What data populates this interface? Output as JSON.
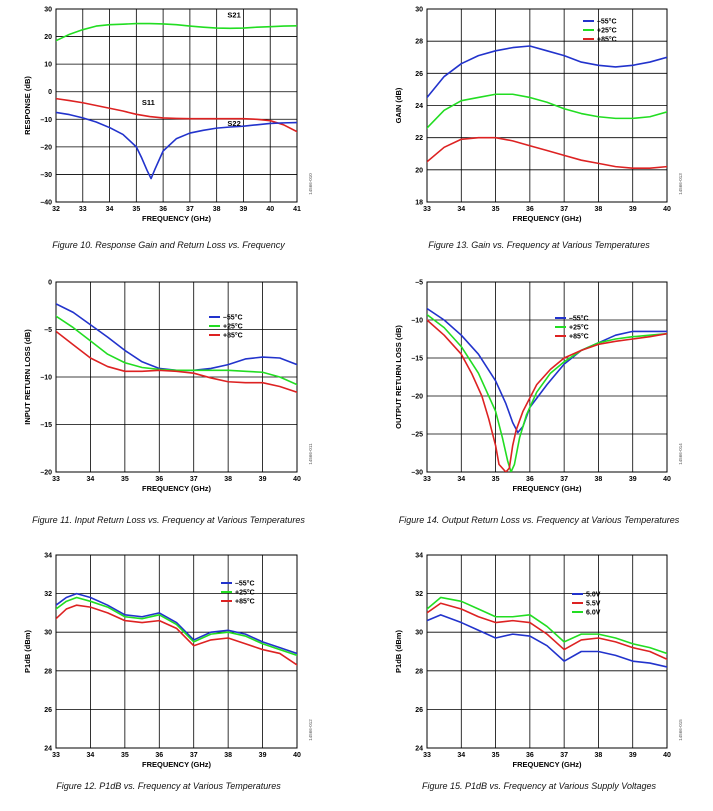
{
  "chart_data": [
    {
      "type": "line",
      "caption": "Figure 10. Response Gain and Return Loss vs. Frequency",
      "xlabel": "FREQUENCY (GHz)",
      "ylabel": "RESPONSE (dB)",
      "xlim": [
        32,
        41
      ],
      "ylim": [
        -40,
        30
      ],
      "xticks": [
        32,
        33,
        34,
        35,
        36,
        37,
        38,
        39,
        40,
        41
      ],
      "yticks": [
        -40,
        -30,
        -20,
        -10,
        0,
        10,
        20,
        30
      ],
      "grid": true,
      "figure_id": "14566-010",
      "annotations": [
        {
          "text": "S21",
          "x": 38.65,
          "y": 27
        },
        {
          "text": "S11",
          "x": 35.45,
          "y": -4.8
        },
        {
          "text": "S22",
          "x": 38.65,
          "y": -12.5
        }
      ],
      "series": [
        {
          "name": "S21",
          "color": "#22dd22",
          "x": [
            32,
            32.5,
            33,
            33.5,
            34,
            34.5,
            35,
            35.5,
            36,
            36.5,
            37,
            37.5,
            38,
            38.5,
            39,
            39.5,
            40,
            40.5,
            41
          ],
          "y": [
            18.5,
            20.8,
            22.5,
            23.8,
            24.3,
            24.5,
            24.7,
            24.7,
            24.6,
            24.3,
            23.8,
            23.4,
            23.1,
            23,
            23.1,
            23.4,
            23.6,
            23.8,
            23.9
          ]
        },
        {
          "name": "S11",
          "color": "#dd2222",
          "x": [
            32,
            32.5,
            33,
            33.5,
            34,
            34.5,
            35,
            35.5,
            36,
            36.5,
            37,
            37.5,
            38,
            38.5,
            39,
            39.5,
            40,
            40.5,
            41
          ],
          "y": [
            -2.5,
            -3.2,
            -4,
            -5,
            -6,
            -7,
            -8.2,
            -9,
            -9.5,
            -9.7,
            -9.8,
            -9.8,
            -9.8,
            -9.8,
            -9.8,
            -10,
            -10.5,
            -12,
            -14.5
          ]
        },
        {
          "name": "S22",
          "color": "#2233cc",
          "x": [
            32,
            32.5,
            33,
            33.5,
            34,
            34.5,
            35,
            35.2,
            35.4,
            35.55,
            35.7,
            36,
            36.5,
            37,
            37.5,
            38,
            38.5,
            39,
            39.5,
            40,
            40.5,
            41
          ],
          "y": [
            -7.5,
            -8.3,
            -9.5,
            -11,
            -13,
            -15.5,
            -20,
            -24,
            -28.5,
            -31.5,
            -28,
            -21.5,
            -17,
            -15,
            -14,
            -13.2,
            -12.8,
            -12.5,
            -12,
            -11.5,
            -11.3,
            -11.2
          ]
        }
      ]
    },
    {
      "type": "line",
      "caption": "Figure 11. Input Return Loss vs. Frequency at Various Temperatures",
      "xlabel": "FREQUENCY (GHz)",
      "ylabel": "INPUT RETURN LOSS (dB)",
      "xlim": [
        33,
        40
      ],
      "ylim": [
        -20,
        0
      ],
      "xticks": [
        33,
        34,
        35,
        36,
        37,
        38,
        39,
        40
      ],
      "yticks": [
        -20,
        -15,
        -10,
        -5,
        0
      ],
      "grid": true,
      "legend": "top-right",
      "figure_id": "14566-011",
      "series": [
        {
          "name": "–55°C",
          "color": "#2233cc",
          "x": [
            33,
            33.5,
            34,
            34.5,
            35,
            35.5,
            36,
            36.5,
            37,
            37.5,
            38,
            38.5,
            39,
            39.5,
            40
          ],
          "y": [
            -2.3,
            -3.2,
            -4.5,
            -5.8,
            -7.2,
            -8.4,
            -9.1,
            -9.3,
            -9.3,
            -9.1,
            -8.7,
            -8.1,
            -7.9,
            -8,
            -8.7
          ]
        },
        {
          "name": "+25°C",
          "color": "#22dd22",
          "x": [
            33,
            33.5,
            34,
            34.5,
            35,
            35.5,
            36,
            36.5,
            37,
            37.5,
            38,
            38.5,
            39,
            39.5,
            40
          ],
          "y": [
            -3.6,
            -4.8,
            -6.2,
            -7.6,
            -8.5,
            -9,
            -9.2,
            -9.3,
            -9.3,
            -9.3,
            -9.3,
            -9.4,
            -9.5,
            -10,
            -10.8
          ]
        },
        {
          "name": "+85°C",
          "color": "#dd2222",
          "x": [
            33,
            33.5,
            34,
            34.5,
            35,
            35.5,
            36,
            36.5,
            37,
            37.5,
            38,
            38.5,
            39,
            39.5,
            40
          ],
          "y": [
            -5.2,
            -6.6,
            -8,
            -8.9,
            -9.4,
            -9.4,
            -9.3,
            -9.4,
            -9.6,
            -10.1,
            -10.5,
            -10.6,
            -10.6,
            -11,
            -11.6
          ]
        }
      ]
    },
    {
      "type": "line",
      "caption": "Figure 12. P1dB vs. Frequency at Various Temperatures",
      "xlabel": "FREQUENCY (GHz)",
      "ylabel": "P1dB (dBm)",
      "xlim": [
        33,
        40
      ],
      "ylim": [
        24,
        34
      ],
      "xticks": [
        33,
        34,
        35,
        36,
        37,
        38,
        39,
        40
      ],
      "yticks": [
        24,
        26,
        28,
        30,
        32,
        34
      ],
      "grid": true,
      "legend": "top-right",
      "figure_id": "14566-012",
      "series": [
        {
          "name": "–55°C",
          "color": "#2233cc",
          "x": [
            33,
            33.3,
            33.6,
            34,
            34.5,
            35,
            35.5,
            36,
            36.5,
            37,
            37.5,
            38,
            38.5,
            39,
            39.5,
            40
          ],
          "y": [
            31.4,
            31.8,
            32,
            31.8,
            31.4,
            30.9,
            30.8,
            31,
            30.5,
            29.6,
            30,
            30.1,
            29.9,
            29.5,
            29.2,
            28.9
          ]
        },
        {
          "name": "+25°C",
          "color": "#22dd22",
          "x": [
            33,
            33.3,
            33.6,
            34,
            34.5,
            35,
            35.5,
            36,
            36.5,
            37,
            37.5,
            38,
            38.5,
            39,
            39.5,
            40
          ],
          "y": [
            31.2,
            31.6,
            31.8,
            31.6,
            31.3,
            30.8,
            30.7,
            30.9,
            30.4,
            29.5,
            29.9,
            30,
            29.8,
            29.4,
            29.1,
            28.8
          ]
        },
        {
          "name": "+85°C",
          "color": "#dd2222",
          "x": [
            33,
            33.3,
            33.6,
            34,
            34.5,
            35,
            35.5,
            36,
            36.5,
            37,
            37.5,
            38,
            38.5,
            39,
            39.5,
            40
          ],
          "y": [
            30.7,
            31.2,
            31.4,
            31.3,
            31,
            30.6,
            30.5,
            30.6,
            30.2,
            29.3,
            29.6,
            29.7,
            29.4,
            29.1,
            28.9,
            28.3
          ]
        }
      ]
    },
    {
      "type": "line",
      "caption": "Figure 13. Gain vs. Frequency at Various Temperatures",
      "xlabel": "FREQUENCY (GHz)",
      "ylabel": "GAIN (dB)",
      "xlim": [
        33,
        40
      ],
      "ylim": [
        18,
        30
      ],
      "xticks": [
        33,
        34,
        35,
        36,
        37,
        38,
        39,
        40
      ],
      "yticks": [
        18,
        20,
        22,
        24,
        26,
        28,
        30
      ],
      "grid": true,
      "legend": "top-right",
      "figure_id": "14566-013",
      "series": [
        {
          "name": "–55°C",
          "color": "#2233cc",
          "x": [
            33,
            33.5,
            34,
            34.5,
            35,
            35.5,
            36,
            36.5,
            37,
            37.5,
            38,
            38.5,
            39,
            39.5,
            40
          ],
          "y": [
            24.5,
            25.8,
            26.6,
            27.1,
            27.4,
            27.6,
            27.7,
            27.4,
            27.1,
            26.7,
            26.5,
            26.4,
            26.5,
            26.7,
            27
          ]
        },
        {
          "name": "+25°C",
          "color": "#22dd22",
          "x": [
            33,
            33.5,
            34,
            34.5,
            35,
            35.5,
            36,
            36.5,
            37,
            37.5,
            38,
            38.5,
            39,
            39.5,
            40
          ],
          "y": [
            22.6,
            23.7,
            24.3,
            24.5,
            24.7,
            24.7,
            24.5,
            24.2,
            23.8,
            23.5,
            23.3,
            23.2,
            23.2,
            23.3,
            23.6
          ]
        },
        {
          "name": "+85°C",
          "color": "#dd2222",
          "x": [
            33,
            33.5,
            34,
            34.5,
            35,
            35.5,
            36,
            36.5,
            37,
            37.5,
            38,
            38.5,
            39,
            39.5,
            40
          ],
          "y": [
            20.5,
            21.4,
            21.9,
            22,
            22,
            21.8,
            21.5,
            21.2,
            20.9,
            20.6,
            20.4,
            20.2,
            20.1,
            20.1,
            20.2
          ]
        }
      ]
    },
    {
      "type": "line",
      "caption": "Figure 14. Output Return Loss vs. Frequency at Various Temperatures",
      "xlabel": "FREQUENCY (GHz)",
      "ylabel": "OUTPUT RETURN LOSS (dB)",
      "xlim": [
        33,
        40
      ],
      "ylim": [
        -30,
        -5
      ],
      "xticks": [
        33,
        34,
        35,
        36,
        37,
        38,
        39,
        40
      ],
      "yticks": [
        -30,
        -25,
        -20,
        -15,
        -10,
        -5
      ],
      "grid": true,
      "legend": "top-right",
      "figure_id": "14566-014",
      "series": [
        {
          "name": "–55°C",
          "color": "#2233cc",
          "x": [
            33,
            33.5,
            34,
            34.5,
            35,
            35.3,
            35.5,
            35.65,
            35.8,
            36,
            36.5,
            37,
            37.5,
            38,
            38.5,
            39,
            39.5,
            40
          ],
          "y": [
            -8.5,
            -10,
            -12,
            -14.5,
            -18,
            -21,
            -23.5,
            -24.8,
            -24,
            -21.5,
            -18.5,
            -15.8,
            -14,
            -13,
            -12,
            -11.5,
            -11.5,
            -11.5
          ]
        },
        {
          "name": "+25°C",
          "color": "#22dd22",
          "x": [
            33,
            33.5,
            34,
            34.5,
            35,
            35.2,
            35.35,
            35.45,
            35.55,
            35.7,
            35.9,
            36.2,
            36.6,
            37,
            37.5,
            38,
            38.5,
            39,
            39.5,
            40
          ],
          "y": [
            -9.3,
            -11,
            -13.5,
            -17,
            -22,
            -25.5,
            -28.5,
            -30,
            -29,
            -25.5,
            -22.5,
            -19.5,
            -17,
            -15.5,
            -14,
            -13,
            -12.5,
            -12.2,
            -12,
            -11.8
          ]
        },
        {
          "name": "+85°C",
          "color": "#dd2222",
          "x": [
            33,
            33.5,
            34,
            34.3,
            34.6,
            34.8,
            35,
            35.1,
            35.3,
            35.4,
            35.5,
            35.6,
            35.8,
            36.2,
            36.6,
            37,
            37.5,
            38,
            38.5,
            39,
            39.5,
            40
          ],
          "y": [
            -10,
            -12,
            -14.5,
            -17,
            -20,
            -23,
            -26.5,
            -29,
            -30,
            -29.5,
            -26.5,
            -24.5,
            -22,
            -18.5,
            -16.5,
            -15,
            -14,
            -13.2,
            -12.8,
            -12.5,
            -12.2,
            -11.8
          ]
        }
      ]
    },
    {
      "type": "line",
      "caption": "Figure 15. P1dB vs. Frequency at Various Supply Voltages",
      "xlabel": "FREQUENCY (GHz)",
      "ylabel": "P1dB (dBm)",
      "xlim": [
        33,
        40
      ],
      "ylim": [
        24,
        34
      ],
      "xticks": [
        33,
        34,
        35,
        36,
        37,
        38,
        39,
        40
      ],
      "yticks": [
        24,
        26,
        28,
        30,
        32,
        34
      ],
      "grid": true,
      "legend": "top-center",
      "figure_id": "14566-015",
      "series": [
        {
          "name": "5.0V",
          "color": "#2233cc",
          "x": [
            33,
            33.4,
            34,
            34.5,
            35,
            35.5,
            36,
            36.5,
            37,
            37.5,
            38,
            38.5,
            39,
            39.5,
            40
          ],
          "y": [
            30.6,
            30.9,
            30.5,
            30.1,
            29.7,
            29.9,
            29.8,
            29.3,
            28.5,
            29,
            29,
            28.8,
            28.5,
            28.4,
            28.2
          ]
        },
        {
          "name": "5.5V",
          "color": "#dd2222",
          "x": [
            33,
            33.4,
            34,
            34.5,
            35,
            35.5,
            36,
            36.5,
            37,
            37.5,
            38,
            38.5,
            39,
            39.5,
            40
          ],
          "y": [
            31,
            31.5,
            31.2,
            30.8,
            30.5,
            30.6,
            30.5,
            29.9,
            29.1,
            29.6,
            29.7,
            29.5,
            29.2,
            29,
            28.6
          ]
        },
        {
          "name": "6.0V",
          "color": "#22dd22",
          "x": [
            33,
            33.4,
            34,
            34.5,
            35,
            35.5,
            36,
            36.5,
            37,
            37.5,
            38,
            38.5,
            39,
            39.5,
            40
          ],
          "y": [
            31.2,
            31.8,
            31.6,
            31.2,
            30.8,
            30.8,
            30.9,
            30.3,
            29.5,
            29.9,
            29.9,
            29.7,
            29.4,
            29.2,
            28.9
          ]
        }
      ]
    }
  ]
}
